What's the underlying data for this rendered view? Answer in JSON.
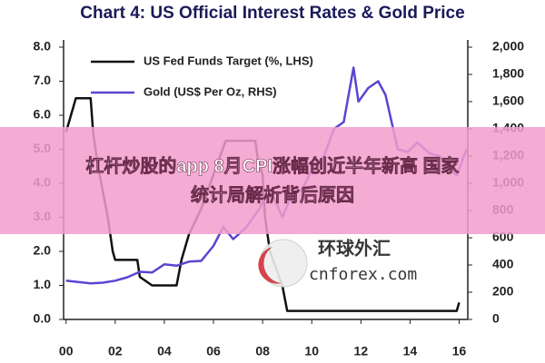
{
  "chart_data": {
    "type": "line",
    "title": "Chart 4: US Official Interest Rates & Gold Price",
    "xlim": [
      1999.9,
      2016.35
    ],
    "xticks": [
      {
        "value": 2000,
        "label": "00"
      },
      {
        "value": 2002,
        "label": "02"
      },
      {
        "value": 2004,
        "label": "04"
      },
      {
        "value": 2006,
        "label": "06"
      },
      {
        "value": 2008,
        "label": "08"
      },
      {
        "value": 2010,
        "label": "10"
      },
      {
        "value": 2012,
        "label": "12"
      },
      {
        "value": 2014,
        "label": "14"
      },
      {
        "value": 2016,
        "label": "16"
      }
    ],
    "ylim": [
      0,
      8
    ],
    "yticks": [
      {
        "value": 0,
        "label": "0.0"
      },
      {
        "value": 1,
        "label": "1.0"
      },
      {
        "value": 2,
        "label": "2.0"
      },
      {
        "value": 3,
        "label": "3.0"
      },
      {
        "value": 4,
        "label": "4.0"
      },
      {
        "value": 5,
        "label": "5.0"
      },
      {
        "value": 6,
        "label": "6.0"
      },
      {
        "value": 7,
        "label": "7.0"
      },
      {
        "value": 8,
        "label": "8.0"
      }
    ],
    "y2lim": [
      0,
      2000
    ],
    "y2ticks": [
      0,
      200,
      400,
      600,
      800,
      {
        "value": 1000,
        "label": "1,000"
      },
      {
        "value": 1200,
        "label": "1,200"
      },
      {
        "value": 1400,
        "label": "1,400"
      },
      {
        "value": 1600,
        "label": "1,600"
      },
      {
        "value": 1800,
        "label": "1,800"
      },
      {
        "value": 2000,
        "label": "2,000"
      }
    ],
    "grid": false,
    "legend": "top-left",
    "series": [
      {
        "name": "US Fed Funds Target (%, LHS)",
        "color": "#111111",
        "x": [
          2000.0,
          2000.1,
          2000.2,
          2000.4,
          2001.0,
          2001.1,
          2001.3,
          2001.5,
          2001.7,
          2001.9,
          2002.0,
          2002.9,
          2003.0,
          2003.5,
          2004.5,
          2004.7,
          2005.0,
          2005.5,
          2006.0,
          2006.5,
          2007.7,
          2007.8,
          2008.0,
          2008.1,
          2008.3,
          2008.8,
          2009.0,
          2015.9,
          2016.0
        ],
        "values": [
          5.5,
          5.75,
          6.0,
          6.5,
          6.5,
          5.5,
          4.5,
          3.75,
          3.0,
          2.0,
          1.75,
          1.75,
          1.25,
          1.0,
          1.0,
          1.75,
          2.5,
          3.25,
          4.25,
          5.25,
          5.25,
          4.75,
          4.25,
          3.0,
          2.0,
          1.0,
          0.25,
          0.25,
          0.5
        ]
      },
      {
        "name": "Gold (US$ Per Oz, RHS)",
        "color": "#5a46d0",
        "axis": "y2",
        "x": [
          2000.0,
          2000.5,
          2001.0,
          2001.5,
          2002.0,
          2002.5,
          2003.0,
          2003.5,
          2004.0,
          2004.5,
          2005.0,
          2005.5,
          2006.0,
          2006.4,
          2006.8,
          2007.3,
          2007.9,
          2008.2,
          2008.5,
          2008.8,
          2009.2,
          2009.6,
          2010.0,
          2010.5,
          2010.9,
          2011.3,
          2011.7,
          2011.9,
          2012.3,
          2012.7,
          2013.0,
          2013.5,
          2013.9,
          2014.3,
          2014.8,
          2015.2,
          2015.6,
          2015.9,
          2016.3
        ],
        "values": [
          285,
          275,
          265,
          270,
          285,
          310,
          350,
          345,
          405,
          395,
          425,
          430,
          540,
          680,
          590,
          670,
          820,
          950,
          880,
          750,
          920,
          950,
          1100,
          1200,
          1400,
          1450,
          1850,
          1600,
          1700,
          1750,
          1650,
          1250,
          1230,
          1300,
          1220,
          1200,
          1100,
          1060,
          1250
        ]
      }
    ]
  },
  "overlay": {
    "headline": [
      "杠杆炒股的app 8月CPI涨幅创近半年新高 国家",
      "统计局解析背后原因"
    ],
    "watermark": {
      "name": "环球外汇",
      "site": "cnforex.com"
    }
  }
}
